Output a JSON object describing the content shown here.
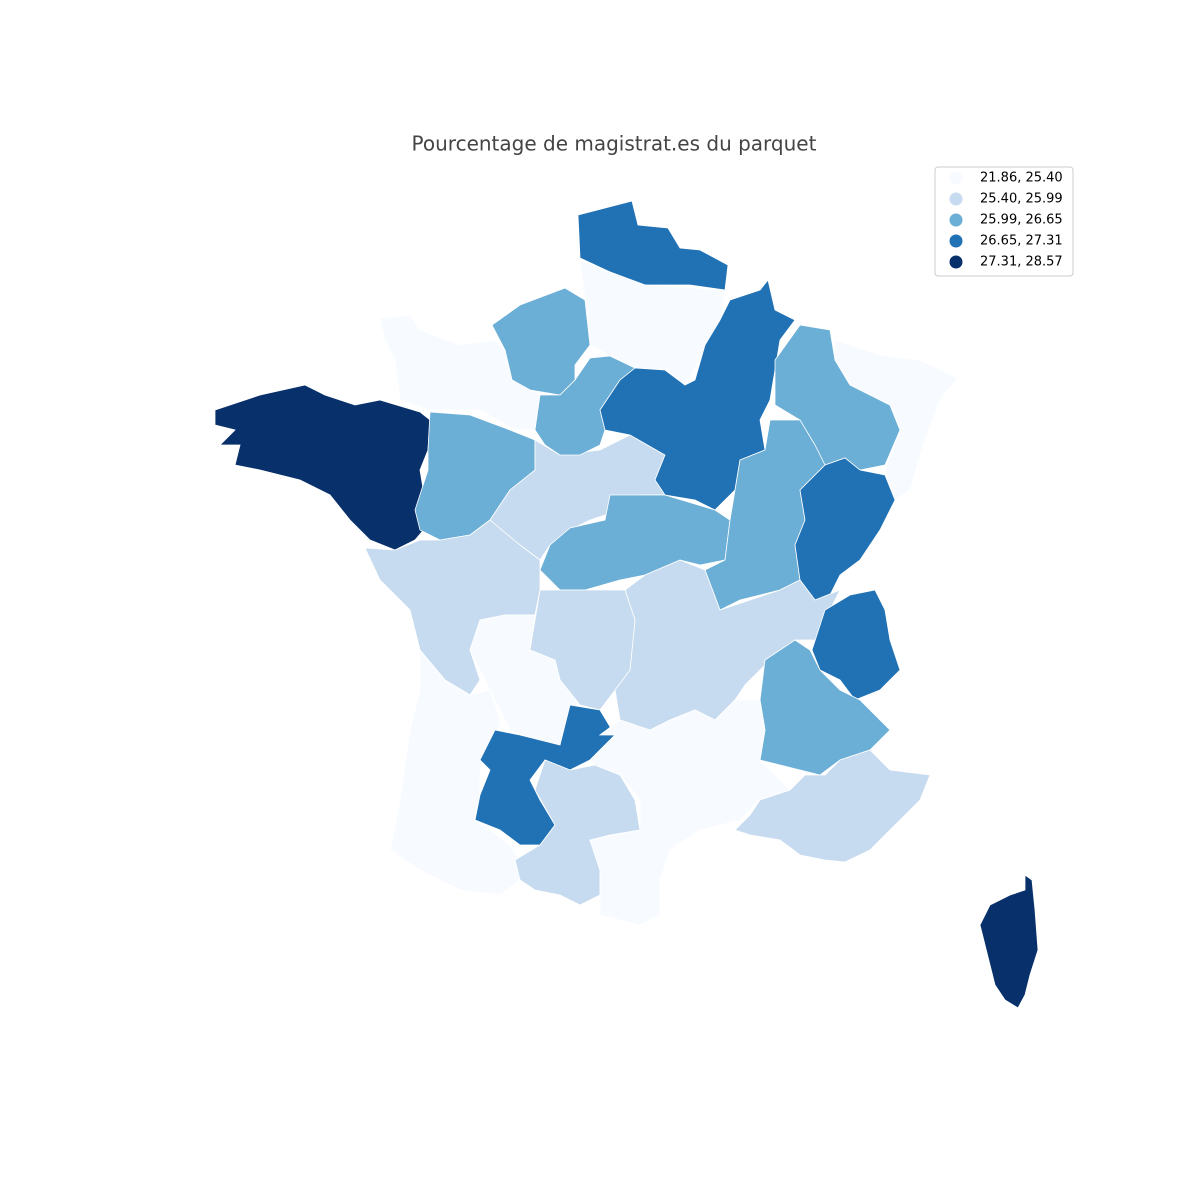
{
  "title": "Pourcentage de magistrat.es du parquet",
  "legend": {
    "items": [
      {
        "label": "21.86, 25.40",
        "color": "#f7fbff"
      },
      {
        "label": "25.40, 25.99",
        "color": "#c6dbef"
      },
      {
        "label": "25.99, 26.65",
        "color": "#6baed6"
      },
      {
        "label": "26.65, 27.31",
        "color": "#2171b5"
      },
      {
        "label": "27.31, 28.57",
        "color": "#08306b"
      }
    ]
  }
}
